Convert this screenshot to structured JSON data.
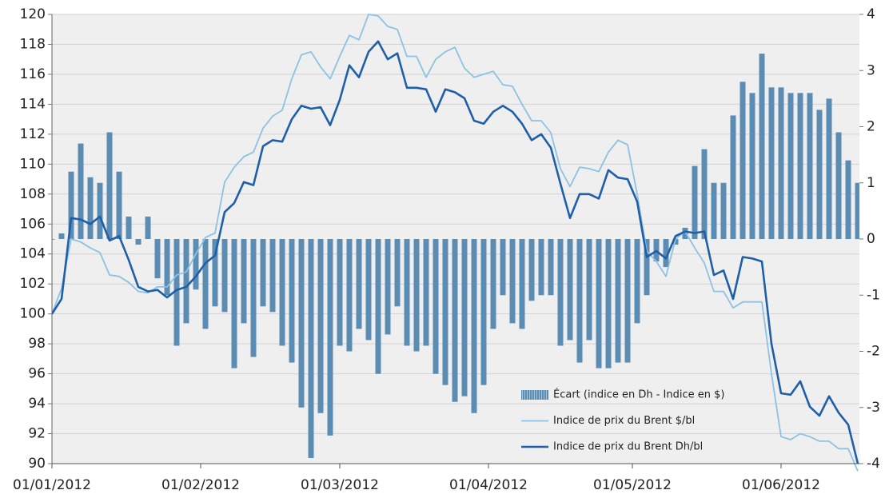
{
  "chart_data": {
    "type": "combo",
    "x": [
      "2012-01-01",
      "2012-01-03",
      "2012-01-05",
      "2012-01-07",
      "2012-01-09",
      "2012-01-11",
      "2012-01-13",
      "2012-01-15",
      "2012-01-17",
      "2012-01-19",
      "2012-01-21",
      "2012-01-23",
      "2012-01-25",
      "2012-01-27",
      "2012-01-29",
      "2012-01-31",
      "2012-02-02",
      "2012-02-04",
      "2012-02-06",
      "2012-02-08",
      "2012-02-10",
      "2012-02-12",
      "2012-02-14",
      "2012-02-16",
      "2012-02-18",
      "2012-02-20",
      "2012-02-22",
      "2012-02-24",
      "2012-02-26",
      "2012-02-28",
      "2012-03-01",
      "2012-03-03",
      "2012-03-05",
      "2012-03-07",
      "2012-03-09",
      "2012-03-11",
      "2012-03-13",
      "2012-03-15",
      "2012-03-17",
      "2012-03-19",
      "2012-03-21",
      "2012-03-23",
      "2012-03-25",
      "2012-03-27",
      "2012-03-29",
      "2012-03-31",
      "2012-04-02",
      "2012-04-04",
      "2012-04-06",
      "2012-04-08",
      "2012-04-10",
      "2012-04-12",
      "2012-04-14",
      "2012-04-16",
      "2012-04-18",
      "2012-04-20",
      "2012-04-22",
      "2012-04-24",
      "2012-04-26",
      "2012-04-28",
      "2012-04-30",
      "2012-05-02",
      "2012-05-04",
      "2012-05-06",
      "2012-05-08",
      "2012-05-10",
      "2012-05-12",
      "2012-05-14",
      "2012-05-16",
      "2012-05-18",
      "2012-05-20",
      "2012-05-22",
      "2012-05-24",
      "2012-05-26",
      "2012-05-28",
      "2012-05-30",
      "2012-06-01",
      "2012-06-03",
      "2012-06-05",
      "2012-06-07",
      "2012-06-09",
      "2012-06-11",
      "2012-06-13",
      "2012-06-15",
      "2012-06-17"
    ],
    "series": [
      {
        "name": "Écart (indice en Dh - Indice en $)",
        "type": "bar",
        "axis": "y2",
        "color": "#5b8db4",
        "values": [
          0,
          0.1,
          1.2,
          1.7,
          1.1,
          1.0,
          1.9,
          1.2,
          0.4,
          -0.1,
          0.4,
          -0.7,
          -1.0,
          -1.9,
          -1.5,
          -0.9,
          -1.6,
          -1.2,
          -1.3,
          -2.3,
          -1.5,
          -2.1,
          -1.2,
          -1.3,
          -1.9,
          -2.2,
          -3.0,
          -3.9,
          -3.1,
          -3.5,
          -1.9,
          -2.0,
          -1.6,
          -1.8,
          -2.4,
          -1.7,
          -1.2,
          -1.9,
          -2.0,
          -1.9,
          -2.4,
          -2.6,
          -2.9,
          -2.8,
          -3.1,
          -2.6,
          -1.6,
          -1.0,
          -1.5,
          -1.6,
          -1.1,
          -1.0,
          -1.0,
          -1.9,
          -1.8,
          -2.2,
          -1.8,
          -2.3,
          -2.3,
          -2.2,
          -2.2,
          -1.5,
          -1.0,
          -0.4,
          -0.5,
          -0.1,
          0.2,
          1.3,
          1.6,
          1.0,
          1.0,
          2.2,
          2.8,
          2.6,
          3.3,
          2.7,
          2.7,
          2.6,
          2.6,
          2.6,
          2.3,
          2.5,
          1.9,
          1.4,
          1.0
        ]
      },
      {
        "name": "Indice de prix du Brent $/bl",
        "type": "line",
        "color": "#8cc2e2",
        "values": [
          100,
          101.7,
          105,
          104.8,
          104.4,
          104.1,
          102.6,
          102.5,
          102.1,
          101.5,
          101.4,
          101.8,
          101.8,
          102.6,
          102.8,
          104,
          105.1,
          105.4,
          108.8,
          109.8,
          110.5,
          110.8,
          112.4,
          113.2,
          113.6,
          115.7,
          117.3,
          117.5,
          116.5,
          115.7,
          117.2,
          118.6,
          118.3,
          120,
          119.9,
          119.2,
          119,
          117.2,
          117.2,
          115.8,
          117,
          117.5,
          117.8,
          116.4,
          115.8,
          116,
          116.2,
          115.3,
          115.2,
          114,
          112.9,
          112.9,
          112.1,
          109.7,
          108.5,
          109.8,
          109.7,
          109.5,
          110.8,
          111.6,
          111.3,
          108,
          104.2,
          103.5,
          102.5,
          105,
          105.5,
          104.4,
          103.4,
          101.5,
          101.5,
          100.4,
          100.8,
          100.8,
          100.8,
          96,
          91.8,
          91.6,
          92,
          91.8,
          91.5,
          91.5,
          91,
          91,
          89.5
        ]
      },
      {
        "name": "Indice de prix du Brent Dh/bl",
        "type": "line",
        "color": "#1f5ea8",
        "values": [
          100,
          101,
          106.4,
          106.3,
          106,
          106.5,
          104.9,
          105.2,
          103.6,
          101.8,
          101.5,
          101.6,
          101.1,
          101.6,
          101.8,
          102.5,
          103.4,
          103.9,
          106.8,
          107.4,
          108.8,
          108.6,
          111.2,
          111.6,
          111.5,
          113,
          113.9,
          113.7,
          113.8,
          112.6,
          114.3,
          116.6,
          115.8,
          117.5,
          118.2,
          117,
          117.4,
          115.1,
          115.1,
          115,
          113.5,
          115,
          114.8,
          114.4,
          112.9,
          112.7,
          113.5,
          113.9,
          113.5,
          112.7,
          111.6,
          112,
          111.1,
          108.7,
          106.4,
          108,
          108,
          107.7,
          109.6,
          109.1,
          109,
          107.5,
          103.8,
          104.2,
          103.7,
          105.2,
          105.5,
          105.4,
          105.5,
          102.6,
          102.9,
          101,
          103.8,
          103.7,
          103.5,
          98,
          94.7,
          94.6,
          95.5,
          93.8,
          93.2,
          94.5,
          93.4,
          92.6,
          90
        ]
      }
    ],
    "xlim": [
      "2012-01-01",
      "2012-06-17"
    ],
    "xticks": [
      {
        "value": "2012-01-01",
        "label": "01/01/2012"
      },
      {
        "value": "2012-02-01",
        "label": "01/02/2012"
      },
      {
        "value": "2012-03-01",
        "label": "01/03/2012"
      },
      {
        "value": "2012-04-01",
        "label": "01/04/2012"
      },
      {
        "value": "2012-05-01",
        "label": "01/05/2012"
      },
      {
        "value": "2012-06-01",
        "label": "01/06/2012"
      }
    ],
    "ylim": [
      90,
      120
    ],
    "yticks": [
      90,
      92,
      94,
      96,
      98,
      100,
      102,
      104,
      106,
      108,
      110,
      112,
      114,
      116,
      118,
      120
    ],
    "y2lim": [
      -4,
      4
    ],
    "y2ticks": [
      -4,
      -3,
      -2,
      -1,
      0,
      1,
      2,
      3,
      4
    ],
    "grid": true,
    "legend": "lower-right"
  }
}
